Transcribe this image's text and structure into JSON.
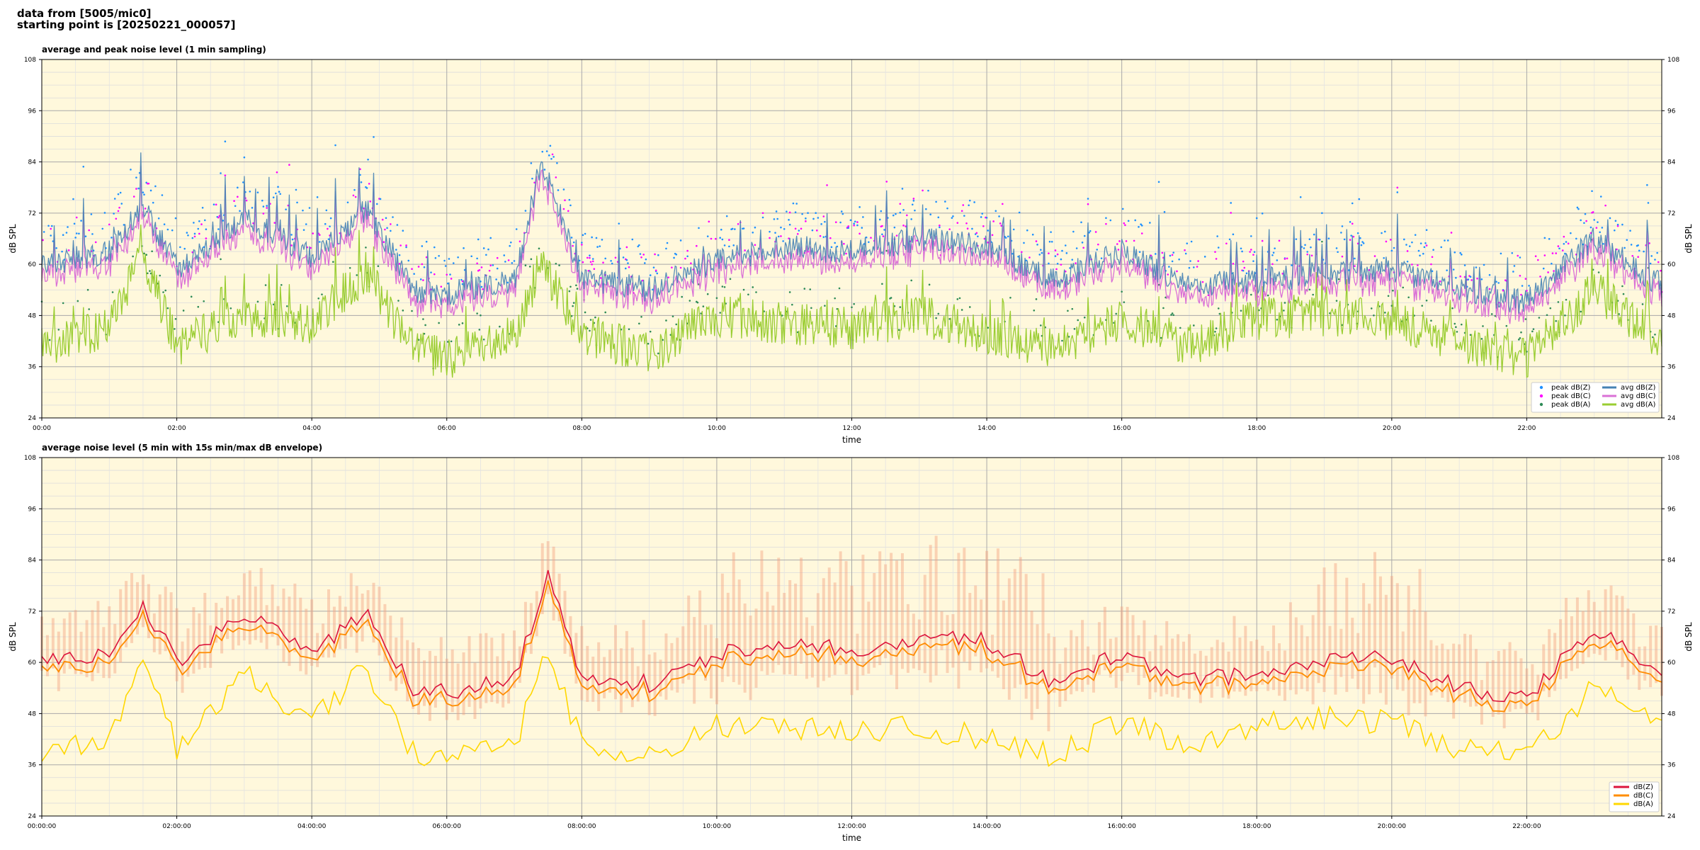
{
  "header": {
    "line1": "data from [5005/mic0]",
    "line2": "starting point is [20250221_000057]"
  },
  "chart_data": [
    {
      "type": "line",
      "title": "average and peak noise level (1 min sampling)",
      "xlabel": "time",
      "ylabel": "dB SPL",
      "ylabel_right": "dB SPL",
      "xlim_hours": [
        0,
        24
      ],
      "ylim": [
        24,
        108
      ],
      "yticks": [
        "24",
        "36",
        "48",
        "60",
        "72",
        "84",
        "96",
        "108"
      ],
      "xticks": [
        "00:00",
        "02:00",
        "04:00",
        "06:00",
        "08:00",
        "10:00",
        "12:00",
        "14:00",
        "16:00",
        "18:00",
        "20:00",
        "22:00"
      ],
      "grid": true,
      "background": "#fff8dc",
      "legend_position": "lower-right",
      "legend": [
        "peak dB(Z)",
        "peak dB(C)",
        "peak dB(A)",
        "avg dB(Z)",
        "avg dB(C)",
        "avg dB(A)"
      ],
      "colors": {
        "zavg": "#4682b4",
        "cavg": "#da70d6",
        "aavg": "#9acd32",
        "zpeak": "#1e90ff",
        "cpeak": "#ff00ff",
        "apeak": "#2e8b57"
      },
      "series_z_avg_hourly": {
        "x": [
          0,
          1,
          1.5,
          2,
          3,
          4,
          4.8,
          5.5,
          6,
          7,
          7.4,
          8,
          9,
          10,
          11,
          12,
          13,
          14,
          15,
          16,
          17,
          18,
          19,
          20,
          21,
          22,
          23,
          24
        ],
        "values": [
          60,
          63,
          74,
          59,
          71,
          62,
          73,
          54,
          53,
          56,
          84,
          57,
          54,
          61,
          64,
          63,
          66,
          64,
          56,
          63,
          55,
          56,
          58,
          59,
          54,
          51,
          66,
          55
        ]
      },
      "series_a_avg_hourly": {
        "x": [
          0,
          1,
          1.5,
          2,
          3,
          4,
          4.8,
          5.5,
          6,
          7,
          7.4,
          8,
          9,
          10,
          11,
          12,
          13,
          14,
          15,
          16,
          17,
          18,
          19,
          20,
          21,
          22,
          23,
          24
        ],
        "values": [
          40,
          45,
          62,
          41,
          48,
          46,
          58,
          40,
          38,
          43,
          60,
          44,
          39,
          48,
          46,
          45,
          48,
          44,
          40,
          47,
          41,
          47,
          48,
          47,
          42,
          38,
          54,
          42
        ]
      },
      "peak_range": [
        36,
        96
      ]
    },
    {
      "type": "line",
      "title": "average noise level (5 min with 15s min/max dB envelope)",
      "xlabel": "time",
      "ylabel": "dB SPL",
      "ylabel_right": "dB SPL",
      "xlim_hours": [
        0,
        24
      ],
      "ylim": [
        24,
        108
      ],
      "yticks": [
        "24",
        "36",
        "48",
        "60",
        "72",
        "84",
        "96",
        "108"
      ],
      "xticks": [
        "00:00:00",
        "02:00:00",
        "04:00:00",
        "06:00:00",
        "08:00:00",
        "10:00:00",
        "12:00:00",
        "14:00:00",
        "16:00:00",
        "18:00:00",
        "20:00:00",
        "22:00:00"
      ],
      "grid": true,
      "background": "#fff8dc",
      "legend_position": "lower-right",
      "legend": [
        "dB(Z)",
        "dB(C)",
        "dB(A)"
      ],
      "colors": {
        "z": "#dc143c",
        "c": "#ff8c00",
        "a": "#ffd700",
        "envelope": "#f4a582"
      },
      "series_z_hourly": {
        "x": [
          0,
          1,
          1.5,
          2,
          3,
          4,
          4.8,
          5.5,
          6,
          7,
          7.5,
          8,
          9,
          10,
          11,
          12,
          13,
          14,
          15,
          16,
          17,
          18,
          19,
          20,
          21,
          22,
          23,
          24
        ],
        "values": [
          60,
          62,
          74,
          60,
          72,
          62,
          72,
          54,
          53,
          56,
          80,
          57,
          55,
          62,
          64,
          63,
          66,
          65,
          55,
          62,
          56,
          57,
          60,
          61,
          54,
          52,
          68,
          57
        ]
      },
      "series_a_hourly": {
        "x": [
          0,
          1,
          1.5,
          2,
          3,
          4,
          4.8,
          5.5,
          6,
          7,
          7.5,
          8,
          9,
          10,
          11,
          12,
          13,
          14,
          15,
          16,
          17,
          18,
          19,
          20,
          21,
          22,
          23,
          24
        ],
        "values": [
          39,
          42,
          61,
          40,
          58,
          46,
          59,
          39,
          38,
          41,
          62,
          41,
          38,
          45,
          44,
          44,
          45,
          42,
          38,
          46,
          40,
          45,
          47,
          46,
          40,
          38,
          54,
          44
        ]
      }
    }
  ]
}
